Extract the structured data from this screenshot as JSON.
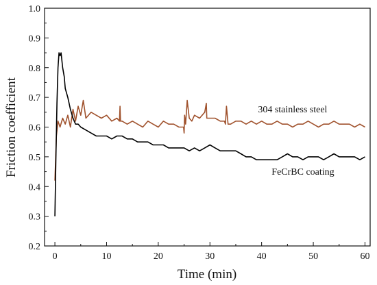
{
  "chart_data": {
    "type": "line",
    "title": "",
    "xlabel": "Time (min)",
    "ylabel": "Friction coefficient",
    "xlim": [
      -2,
      61
    ],
    "ylim": [
      0.2,
      1.0
    ],
    "xticks": [
      0,
      10,
      20,
      30,
      40,
      50,
      60
    ],
    "yticks": [
      0.2,
      0.3,
      0.4,
      0.5,
      0.6,
      0.7,
      0.8,
      0.9,
      1.0
    ],
    "legend": "inline labels",
    "series": [
      {
        "name": "304 stainless steel",
        "color": "#a0522d",
        "x": [
          0,
          0.3,
          0.6,
          1.0,
          1.5,
          2.0,
          2.5,
          3.0,
          3.5,
          4.0,
          4.5,
          5.0,
          5.5,
          6.0,
          7.0,
          8.0,
          9.0,
          10.0,
          11.0,
          12.0,
          12.5,
          12.6,
          12.7,
          13.0,
          14.0,
          15.0,
          16.0,
          17.0,
          18.0,
          19.0,
          20.0,
          21.0,
          22.0,
          23.0,
          24.0,
          24.9,
          25.0,
          25.1,
          25.3,
          25.6,
          26.0,
          26.5,
          27.0,
          28.0,
          29.0,
          29.3,
          29.4,
          29.6,
          30.0,
          31.0,
          32.0,
          32.8,
          33.0,
          33.2,
          33.5,
          34.0,
          35.0,
          36.0,
          37.0,
          38.0,
          39.0,
          40.0,
          41.0,
          42.0,
          43.0,
          44.0,
          45.0,
          46.0,
          47.0,
          48.0,
          49.0,
          50.0,
          51.0,
          52.0,
          53.0,
          54.0,
          55.0,
          56.0,
          57.0,
          58.0,
          59.0,
          60.0
        ],
        "y": [
          0.42,
          0.57,
          0.62,
          0.6,
          0.63,
          0.61,
          0.64,
          0.6,
          0.66,
          0.62,
          0.67,
          0.64,
          0.69,
          0.63,
          0.65,
          0.64,
          0.63,
          0.64,
          0.62,
          0.63,
          0.62,
          0.67,
          0.62,
          0.62,
          0.61,
          0.62,
          0.61,
          0.6,
          0.62,
          0.61,
          0.6,
          0.62,
          0.61,
          0.61,
          0.6,
          0.6,
          0.58,
          0.64,
          0.61,
          0.69,
          0.63,
          0.62,
          0.64,
          0.63,
          0.65,
          0.68,
          0.63,
          0.63,
          0.63,
          0.63,
          0.62,
          0.62,
          0.61,
          0.67,
          0.61,
          0.61,
          0.62,
          0.62,
          0.61,
          0.62,
          0.61,
          0.62,
          0.61,
          0.61,
          0.62,
          0.61,
          0.61,
          0.6,
          0.61,
          0.61,
          0.62,
          0.61,
          0.6,
          0.61,
          0.61,
          0.62,
          0.61,
          0.61,
          0.61,
          0.6,
          0.61,
          0.6
        ]
      },
      {
        "name": "FeCrBC coating",
        "color": "#000000",
        "x": [
          0,
          0.2,
          0.4,
          0.6,
          0.8,
          1.0,
          1.2,
          1.5,
          1.8,
          2.0,
          2.5,
          3.0,
          3.5,
          4.0,
          4.5,
          5.0,
          6.0,
          7.0,
          8.0,
          9.0,
          10.0,
          11.0,
          12.0,
          13.0,
          14.0,
          15.0,
          16.0,
          17.0,
          18.0,
          19.0,
          20.0,
          21.0,
          22.0,
          23.0,
          24.0,
          25.0,
          26.0,
          27.0,
          28.0,
          29.0,
          30.0,
          31.0,
          32.0,
          33.0,
          34.0,
          35.0,
          36.0,
          37.0,
          38.0,
          39.0,
          40.0,
          41.0,
          42.0,
          43.0,
          44.0,
          45.0,
          46.0,
          47.0,
          48.0,
          49.0,
          50.0,
          51.0,
          52.0,
          53.0,
          54.0,
          55.0,
          56.0,
          57.0,
          58.0,
          59.0,
          60.0
        ],
        "y": [
          0.3,
          0.5,
          0.68,
          0.8,
          0.85,
          0.84,
          0.85,
          0.8,
          0.77,
          0.73,
          0.7,
          0.66,
          0.63,
          0.61,
          0.61,
          0.6,
          0.59,
          0.58,
          0.57,
          0.57,
          0.57,
          0.56,
          0.57,
          0.57,
          0.56,
          0.56,
          0.55,
          0.55,
          0.55,
          0.54,
          0.54,
          0.54,
          0.53,
          0.53,
          0.53,
          0.53,
          0.52,
          0.53,
          0.52,
          0.53,
          0.54,
          0.53,
          0.52,
          0.52,
          0.52,
          0.52,
          0.51,
          0.5,
          0.5,
          0.49,
          0.49,
          0.49,
          0.49,
          0.49,
          0.5,
          0.51,
          0.5,
          0.5,
          0.49,
          0.5,
          0.5,
          0.5,
          0.49,
          0.5,
          0.51,
          0.5,
          0.5,
          0.5,
          0.5,
          0.49,
          0.5
        ]
      }
    ],
    "annotations": [
      {
        "text": "304 stainless steel",
        "x": 46,
        "y": 0.65,
        "series": 0
      },
      {
        "text": "FeCrBC coating",
        "x": 48,
        "y": 0.44,
        "series": 1
      }
    ]
  }
}
